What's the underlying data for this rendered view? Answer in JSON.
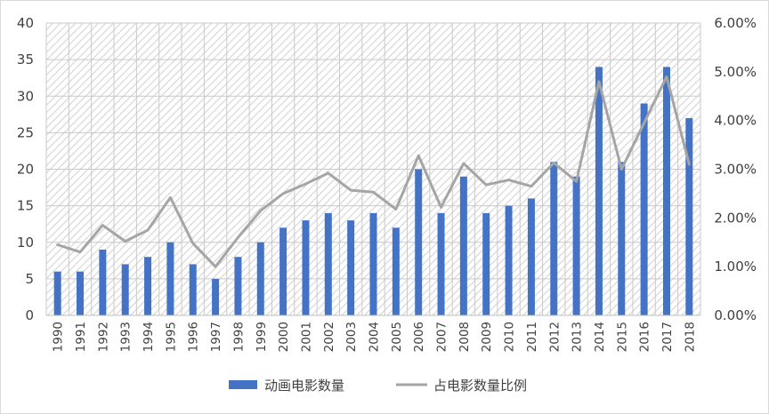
{
  "chart_data": {
    "type": "bar+line",
    "categories": [
      "1990",
      "1991",
      "1992",
      "1993",
      "1994",
      "1995",
      "1996",
      "1997",
      "1998",
      "1999",
      "2000",
      "2001",
      "2002",
      "2003",
      "2004",
      "2005",
      "2006",
      "2007",
      "2008",
      "2009",
      "2010",
      "2011",
      "2012",
      "2013",
      "2014",
      "2015",
      "2016",
      "2017",
      "2018"
    ],
    "series": [
      {
        "name": "动画电影数量",
        "type": "bar",
        "axis": "left",
        "color": "#4472c4",
        "values": [
          6,
          6,
          9,
          7,
          8,
          10,
          7,
          5,
          8,
          10,
          12,
          13,
          14,
          13,
          14,
          12,
          20,
          14,
          19,
          14,
          15,
          16,
          21,
          19,
          34,
          21,
          29,
          34,
          27
        ]
      },
      {
        "name": "占电影数量比例",
        "type": "line",
        "axis": "right",
        "color": "#a5a5a5",
        "values": [
          0.0145,
          0.013,
          0.0185,
          0.0152,
          0.0175,
          0.0242,
          0.0148,
          0.01,
          0.016,
          0.0215,
          0.025,
          0.027,
          0.0292,
          0.0257,
          0.0253,
          0.0218,
          0.0328,
          0.0222,
          0.0312,
          0.0268,
          0.0278,
          0.0265,
          0.0313,
          0.0275,
          0.048,
          0.03,
          0.0395,
          0.049,
          0.031
        ]
      }
    ],
    "y_left": {
      "min": 0,
      "max": 40,
      "ticks": [
        "0",
        "5",
        "10",
        "15",
        "20",
        "25",
        "30",
        "35",
        "40"
      ]
    },
    "y_right": {
      "min": 0,
      "max": 0.06,
      "ticks": [
        "0.00%",
        "1.00%",
        "2.00%",
        "3.00%",
        "4.00%",
        "5.00%",
        "6.00%"
      ]
    },
    "grid": true,
    "plot_fill": "hatched",
    "legend_position": "bottom"
  }
}
